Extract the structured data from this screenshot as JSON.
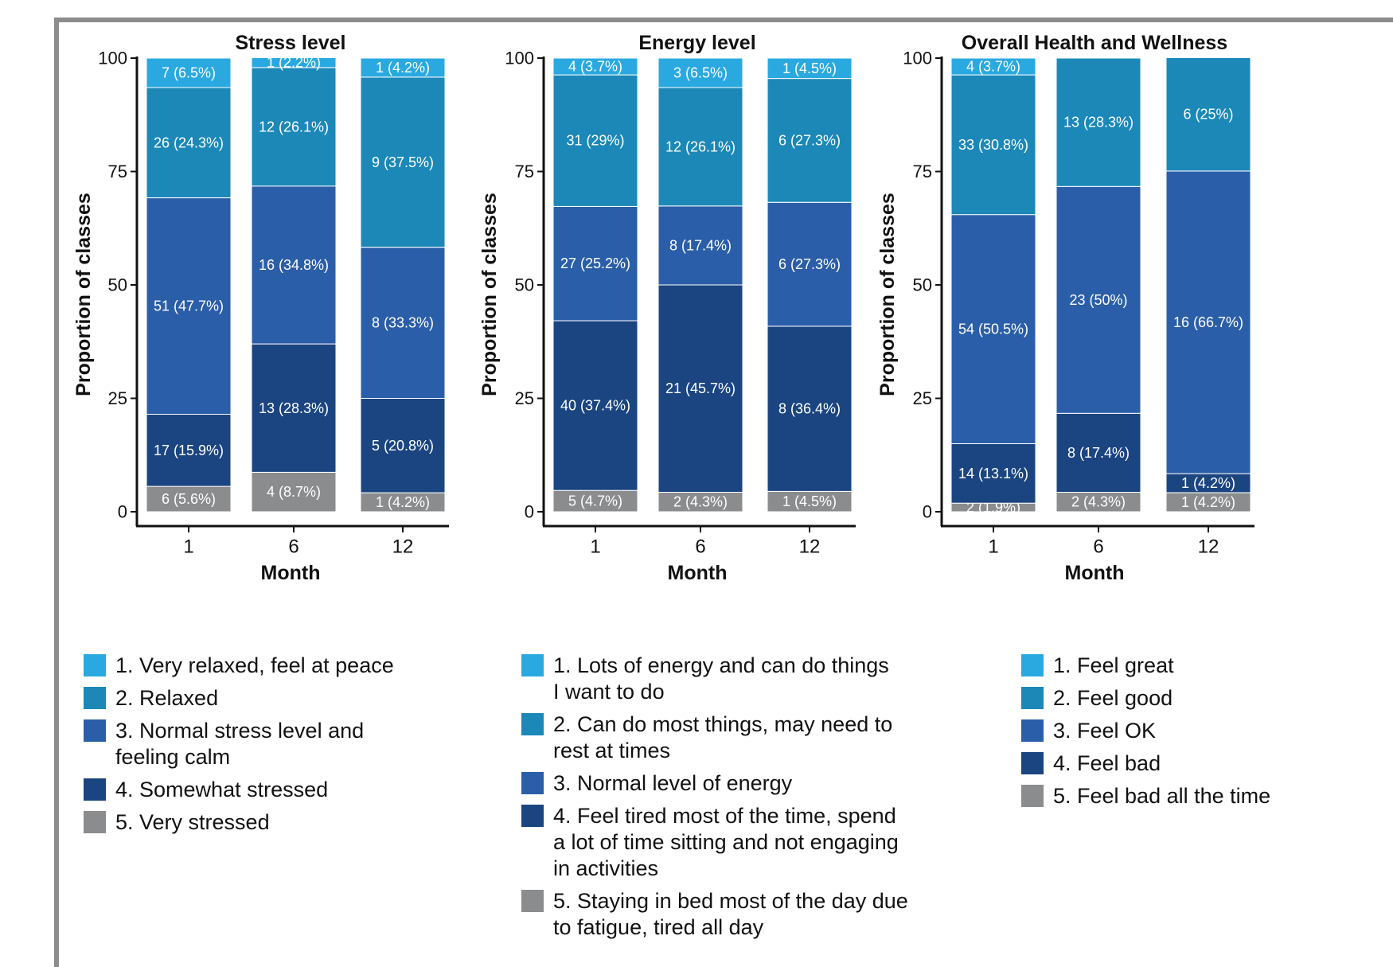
{
  "colors": {
    "cat1": "#2aa9e0",
    "cat2": "#1b88b8",
    "cat3": "#2b5ea8",
    "cat4": "#1b4580",
    "cat5": "#8b8c8e",
    "frame": "#8c8c8c"
  },
  "chart_data": [
    {
      "type": "bar",
      "stacked": true,
      "title": "Stress level",
      "xlabel": "Month",
      "ylabel": "Proportion of classes",
      "ylim": [
        0,
        100
      ],
      "yticks": [
        "0",
        "25",
        "50",
        "75",
        "100"
      ],
      "categories": [
        "1",
        "6",
        "12"
      ],
      "series": [
        {
          "name": "5. Very stressed",
          "values": [
            5.6,
            8.7,
            4.2
          ],
          "labels": [
            "6 (5.6%)",
            "4 (8.7%)",
            "1 (4.2%)"
          ]
        },
        {
          "name": "4. Somewhat stressed",
          "values": [
            15.9,
            28.3,
            20.8
          ],
          "labels": [
            "17 (15.9%)",
            "13 (28.3%)",
            "5 (20.8%)"
          ]
        },
        {
          "name": "3. Normal stress level and\nfeeling calm",
          "values": [
            47.7,
            34.8,
            33.3
          ],
          "labels": [
            "51 (47.7%)",
            "16 (34.8%)",
            "8 (33.3%)"
          ]
        },
        {
          "name": "2. Relaxed",
          "values": [
            24.3,
            26.1,
            37.5
          ],
          "labels": [
            "26 (24.3%)",
            "12 (26.1%)",
            "9 (37.5%)"
          ]
        },
        {
          "name": "1. Very relaxed, feel at peace",
          "values": [
            6.5,
            2.2,
            4.2
          ],
          "labels": [
            "7 (6.5%)",
            "1 (2.2%)",
            "1 (4.2%)"
          ]
        }
      ]
    },
    {
      "type": "bar",
      "stacked": true,
      "title": "Energy level",
      "xlabel": "Month",
      "ylabel": "Proportion of classes",
      "ylim": [
        0,
        100
      ],
      "yticks": [
        "0",
        "25",
        "50",
        "75",
        "100"
      ],
      "categories": [
        "1",
        "6",
        "12"
      ],
      "series": [
        {
          "name": "5. Staying in bed most of the day due\nto fatigue, tired all day",
          "values": [
            4.7,
            4.3,
            4.5
          ],
          "labels": [
            "5 (4.7%)",
            "2 (4.3%)",
            "1 (4.5%)"
          ]
        },
        {
          "name": "4. Feel tired most of the time, spend\na lot of time sitting and not engaging\nin activities",
          "values": [
            37.4,
            45.7,
            36.4
          ],
          "labels": [
            "40 (37.4%)",
            "21 (45.7%)",
            "8 (36.4%)"
          ]
        },
        {
          "name": "3. Normal level of energy",
          "values": [
            25.2,
            17.4,
            27.3
          ],
          "labels": [
            "27 (25.2%)",
            "8 (17.4%)",
            "6 (27.3%)"
          ]
        },
        {
          "name": "2. Can do most things, may need to\nrest at times",
          "values": [
            29.0,
            26.1,
            27.3
          ],
          "labels": [
            "31 (29%)",
            "12 (26.1%)",
            "6 (27.3%)"
          ]
        },
        {
          "name": "1. Lots of energy and can do things\nI want to do",
          "values": [
            3.7,
            6.5,
            4.5
          ],
          "labels": [
            "4 (3.7%)",
            "3 (6.5%)",
            "1 (4.5%)"
          ]
        }
      ]
    },
    {
      "type": "bar",
      "stacked": true,
      "title": "Overall Health and Wellness",
      "xlabel": "Month",
      "ylabel": "Proportion of classes",
      "ylim": [
        0,
        100
      ],
      "yticks": [
        "0",
        "25",
        "50",
        "75",
        "100"
      ],
      "categories": [
        "1",
        "6",
        "12"
      ],
      "series": [
        {
          "name": "5. Feel bad all the time",
          "values": [
            1.9,
            4.3,
            4.2
          ],
          "labels": [
            "2 (1.9%)",
            "2 (4.3%)",
            "1 (4.2%)"
          ]
        },
        {
          "name": "4. Feel bad",
          "values": [
            13.1,
            17.4,
            4.2
          ],
          "labels": [
            "14 (13.1%)",
            "8 (17.4%)",
            "1 (4.2%)"
          ]
        },
        {
          "name": "3. Feel OK",
          "values": [
            50.5,
            50.0,
            66.7
          ],
          "labels": [
            "54 (50.5%)",
            "23 (50%)",
            "16 (66.7%)"
          ]
        },
        {
          "name": "2. Feel good",
          "values": [
            30.8,
            28.3,
            25.0
          ],
          "labels": [
            "33 (30.8%)",
            "13 (28.3%)",
            "6 (25%)"
          ]
        },
        {
          "name": "1. Feel great",
          "values": [
            3.7,
            0,
            0
          ],
          "labels": [
            "4 (3.7%)",
            "",
            ""
          ]
        }
      ]
    }
  ],
  "legends": {
    "stress": [
      "1. Very relaxed, feel at peace",
      "2. Relaxed",
      "3. Normal stress level and\n   feeling calm",
      "4. Somewhat stressed",
      "5. Very stressed"
    ],
    "energy": [
      "1. Lots of energy and can do things\n   I want to do",
      "2. Can do most things, may need to\n   rest at times",
      "3. Normal level of energy",
      "4. Feel tired most of the time, spend\n   a lot of time sitting and not engaging\n   in activities",
      "5. Staying in bed most of the day due\n   to fatigue, tired all day"
    ],
    "health": [
      "1. Feel great",
      "2. Feel good",
      "3. Feel OK",
      "4. Feel bad",
      "5. Feel bad all the time"
    ]
  }
}
